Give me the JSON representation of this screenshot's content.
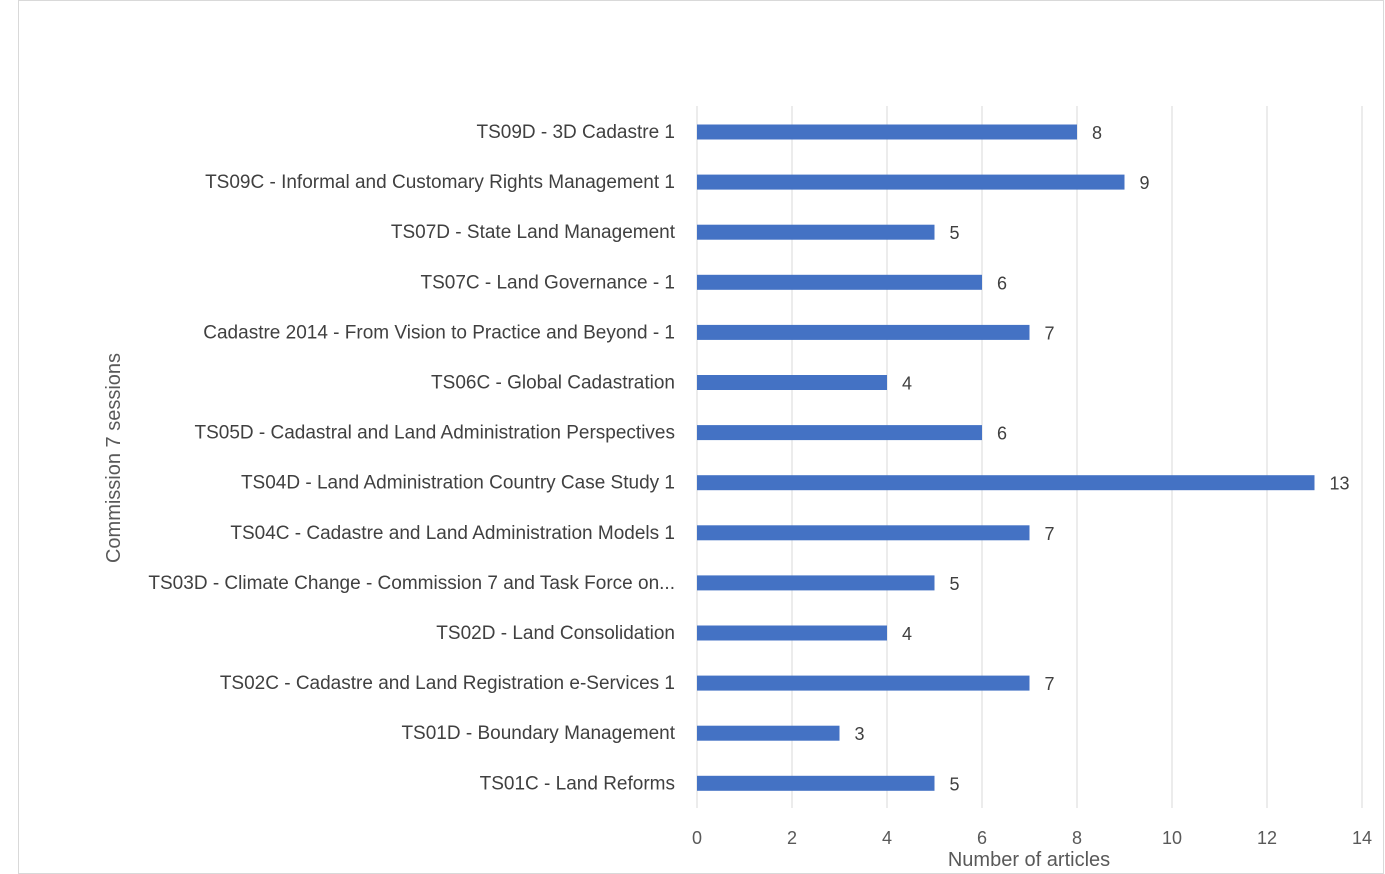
{
  "chart_data": {
    "type": "bar",
    "orientation": "horizontal",
    "title": "",
    "xlabel": "Number of articles",
    "ylabel": "Commission 7 sessions",
    "xlim": [
      0,
      14
    ],
    "x_ticks": [
      0,
      2,
      4,
      6,
      8,
      10,
      12,
      14
    ],
    "grid": true,
    "bar_color": "#4472C4",
    "data_labels": true,
    "categories": [
      "TS09D - 3D Cadastre 1",
      "TS09C - Informal and Customary Rights Management 1",
      "TS07D - State Land Management",
      "TS07C - Land Governance - 1",
      "Cadastre 2014 - From Vision to Practice and Beyond - 1",
      "TS06C - Global Cadastration",
      "TS05D - Cadastral and Land Administration Perspectives",
      "TS04D - Land Administration Country Case Study 1",
      "TS04C - Cadastre and Land Administration Models 1",
      "TS03D - Climate Change - Commission 7 and Task Force on...",
      "TS02D - Land Consolidation",
      "TS02C - Cadastre and Land Registration e-Services 1",
      "TS01D - Boundary Management",
      "TS01C - Land Reforms"
    ],
    "values": [
      8,
      9,
      5,
      6,
      7,
      4,
      6,
      13,
      7,
      5,
      4,
      7,
      3,
      5
    ]
  }
}
